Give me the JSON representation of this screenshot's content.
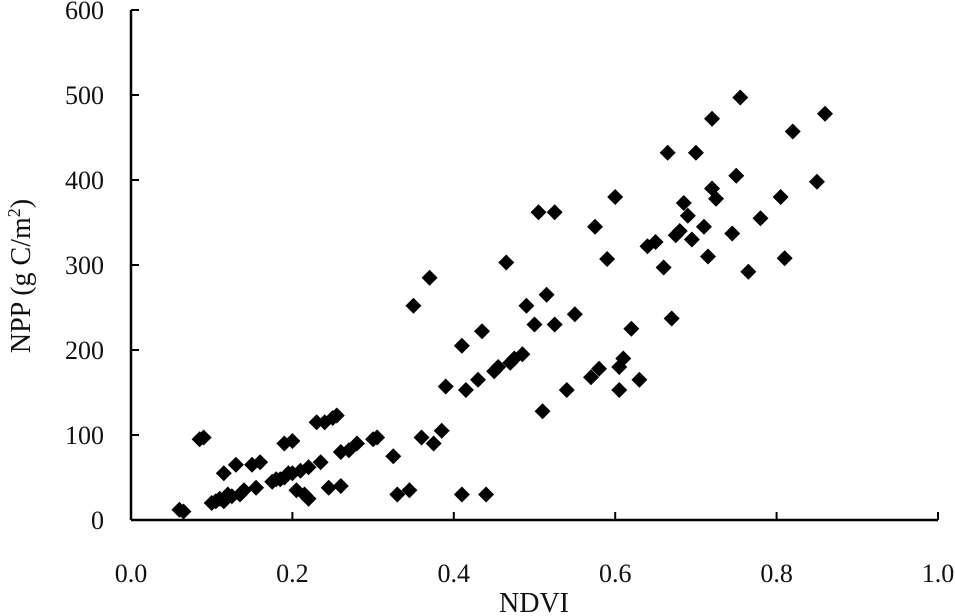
{
  "chart_data": {
    "type": "scatter",
    "xlabel": "NDVI",
    "ylabel": "NPP (g C/m",
    "ylabel_sup": "2",
    "ylabel_end": ")",
    "xlim": [
      0.0,
      1.0
    ],
    "ylim": [
      0,
      600
    ],
    "xticks": [
      "0.0",
      "0.2",
      "0.4",
      "0.6",
      "0.8",
      "1.0"
    ],
    "yticks": [
      "0",
      "100",
      "200",
      "300",
      "400",
      "500",
      "600"
    ],
    "marker": "diamond",
    "color": "#000000",
    "grid": false,
    "points": [
      [
        0.06,
        12
      ],
      [
        0.065,
        10
      ],
      [
        0.085,
        95
      ],
      [
        0.09,
        97
      ],
      [
        0.1,
        20
      ],
      [
        0.105,
        22
      ],
      [
        0.11,
        25
      ],
      [
        0.115,
        22
      ],
      [
        0.115,
        55
      ],
      [
        0.12,
        30
      ],
      [
        0.125,
        28
      ],
      [
        0.13,
        65
      ],
      [
        0.135,
        30
      ],
      [
        0.14,
        35
      ],
      [
        0.15,
        65
      ],
      [
        0.155,
        38
      ],
      [
        0.16,
        68
      ],
      [
        0.175,
        45
      ],
      [
        0.18,
        48
      ],
      [
        0.185,
        48
      ],
      [
        0.19,
        50
      ],
      [
        0.19,
        90
      ],
      [
        0.195,
        55
      ],
      [
        0.2,
        93
      ],
      [
        0.2,
        55
      ],
      [
        0.205,
        35
      ],
      [
        0.21,
        58
      ],
      [
        0.215,
        30
      ],
      [
        0.22,
        25
      ],
      [
        0.22,
        62
      ],
      [
        0.23,
        115
      ],
      [
        0.235,
        68
      ],
      [
        0.24,
        115
      ],
      [
        0.245,
        38
      ],
      [
        0.25,
        120
      ],
      [
        0.255,
        123
      ],
      [
        0.26,
        40
      ],
      [
        0.26,
        80
      ],
      [
        0.27,
        82
      ],
      [
        0.28,
        90
      ],
      [
        0.3,
        95
      ],
      [
        0.305,
        97
      ],
      [
        0.325,
        75
      ],
      [
        0.33,
        30
      ],
      [
        0.345,
        35
      ],
      [
        0.35,
        252
      ],
      [
        0.36,
        97
      ],
      [
        0.37,
        285
      ],
      [
        0.375,
        90
      ],
      [
        0.385,
        105
      ],
      [
        0.39,
        157
      ],
      [
        0.41,
        205
      ],
      [
        0.41,
        30
      ],
      [
        0.415,
        153
      ],
      [
        0.43,
        165
      ],
      [
        0.435,
        222
      ],
      [
        0.44,
        30
      ],
      [
        0.45,
        175
      ],
      [
        0.455,
        180
      ],
      [
        0.465,
        303
      ],
      [
        0.47,
        185
      ],
      [
        0.475,
        190
      ],
      [
        0.485,
        195
      ],
      [
        0.49,
        252
      ],
      [
        0.5,
        230
      ],
      [
        0.505,
        362
      ],
      [
        0.51,
        128
      ],
      [
        0.515,
        265
      ],
      [
        0.525,
        230
      ],
      [
        0.525,
        362
      ],
      [
        0.54,
        153
      ],
      [
        0.55,
        242
      ],
      [
        0.57,
        168
      ],
      [
        0.575,
        345
      ],
      [
        0.58,
        178
      ],
      [
        0.59,
        307
      ],
      [
        0.6,
        380
      ],
      [
        0.605,
        153
      ],
      [
        0.605,
        180
      ],
      [
        0.61,
        190
      ],
      [
        0.62,
        225
      ],
      [
        0.63,
        165
      ],
      [
        0.64,
        322
      ],
      [
        0.65,
        327
      ],
      [
        0.66,
        297
      ],
      [
        0.665,
        432
      ],
      [
        0.67,
        237
      ],
      [
        0.675,
        335
      ],
      [
        0.68,
        340
      ],
      [
        0.685,
        373
      ],
      [
        0.69,
        358
      ],
      [
        0.695,
        330
      ],
      [
        0.7,
        432
      ],
      [
        0.71,
        345
      ],
      [
        0.715,
        310
      ],
      [
        0.72,
        390
      ],
      [
        0.72,
        472
      ],
      [
        0.725,
        378
      ],
      [
        0.745,
        337
      ],
      [
        0.75,
        405
      ],
      [
        0.755,
        497
      ],
      [
        0.765,
        292
      ],
      [
        0.78,
        355
      ],
      [
        0.805,
        380
      ],
      [
        0.81,
        308
      ],
      [
        0.82,
        457
      ],
      [
        0.85,
        398
      ],
      [
        0.86,
        478
      ]
    ]
  }
}
